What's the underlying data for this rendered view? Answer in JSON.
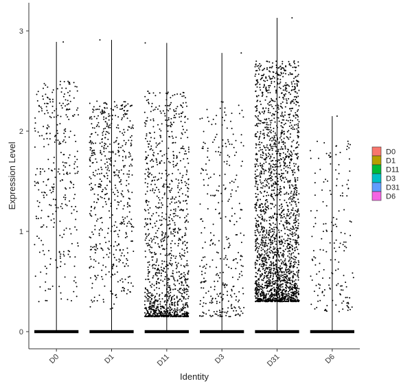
{
  "chart_data": {
    "type": "scatter",
    "subtype": "violin-jitter",
    "title": "",
    "xlabel": "Identity",
    "ylabel": "Expression Level",
    "ylim": [
      -0.18,
      3.3
    ],
    "yticks": [
      0,
      1,
      2,
      3
    ],
    "categories": [
      "D0",
      "D1",
      "D11",
      "D3",
      "D31",
      "D6"
    ],
    "colors": [
      "#F8766D",
      "#B79F00",
      "#00BA38",
      "#00BFC4",
      "#619CFF",
      "#F564E3"
    ],
    "legend_position": "right",
    "grid": false,
    "series": [
      {
        "name": "D0",
        "max": 2.89,
        "zero_spread": 0.015,
        "nonzero_count": 330,
        "lo": 0.25,
        "hi": 2.5,
        "shape": 0.7
      },
      {
        "name": "D1",
        "max": 2.91,
        "zero_spread": 0.015,
        "nonzero_count": 560,
        "lo": 0.2,
        "hi": 2.3,
        "shape": 0.7
      },
      {
        "name": "D11",
        "max": 2.88,
        "zero_spread": 0.015,
        "nonzero_count": 1200,
        "lo": 0.15,
        "hi": 2.4,
        "shape": 2.4
      },
      {
        "name": "D3",
        "max": 2.78,
        "zero_spread": 0.015,
        "nonzero_count": 330,
        "lo": 0.15,
        "hi": 2.3,
        "shape": 1.6
      },
      {
        "name": "D31",
        "max": 3.13,
        "zero_spread": 0.015,
        "nonzero_count": 2300,
        "lo": 0.3,
        "hi": 2.7,
        "shape": 1.8
      },
      {
        "name": "D6",
        "max": 2.15,
        "zero_spread": 0.015,
        "nonzero_count": 170,
        "lo": 0.2,
        "hi": 1.9,
        "shape": 1.3
      }
    ]
  }
}
